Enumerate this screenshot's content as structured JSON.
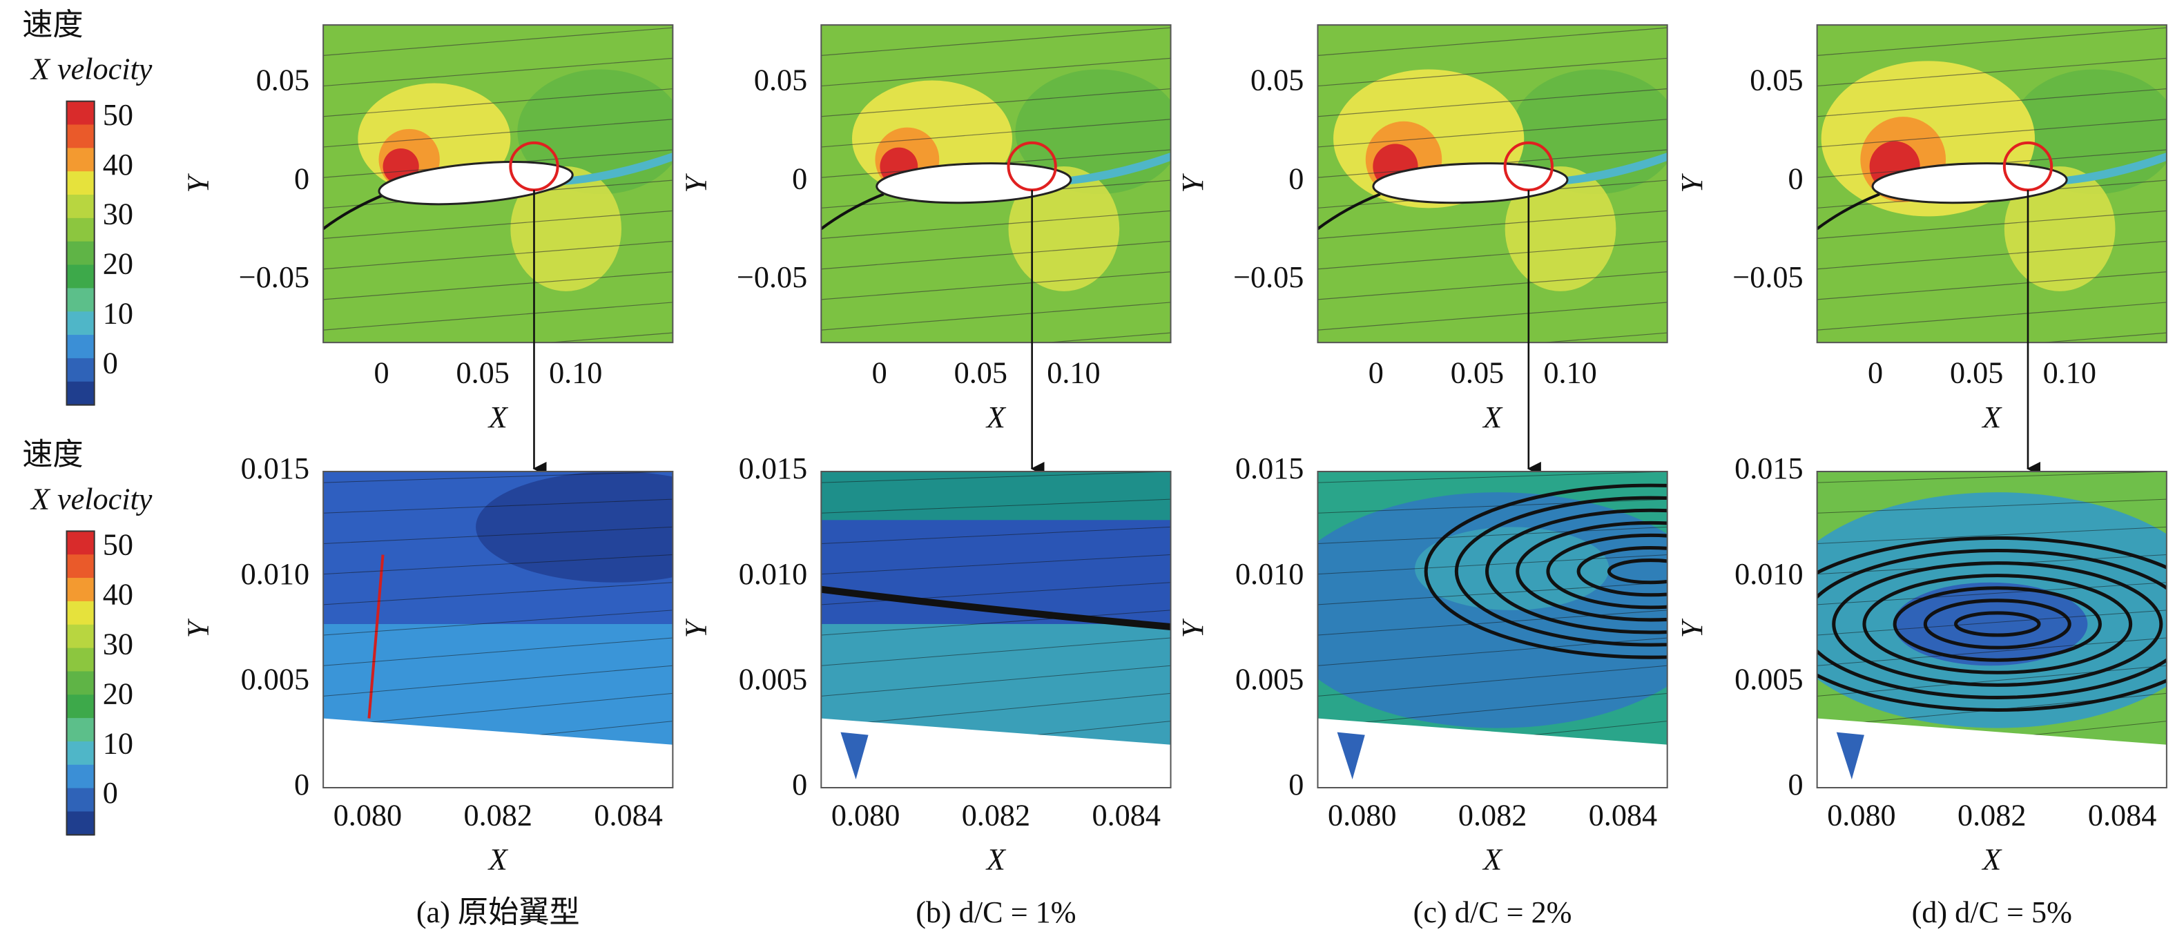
{
  "colorbars": [
    {
      "title_cn": "速度",
      "title_en": "X velocity",
      "labels": [
        "50",
        "40",
        "30",
        "20",
        "10",
        "0"
      ]
    },
    {
      "title_cn": "速度",
      "title_en": "X velocity",
      "labels": [
        "50",
        "40",
        "30",
        "20",
        "10",
        "0"
      ]
    }
  ],
  "panels": [
    {
      "caption": "(a) 原始翼型",
      "overview": {
        "x_label": "X",
        "y_label": "Y",
        "x_ticks": [
          "0",
          "0.05",
          "0.10"
        ],
        "y_ticks": [
          "0.05",
          "0",
          "−0.05"
        ]
      },
      "detail": {
        "x_label": "X",
        "y_label": "Y",
        "x_ticks": [
          "0.080",
          "0.082",
          "0.084"
        ],
        "y_ticks": [
          "0.015",
          "0.010",
          "0.005",
          "0"
        ]
      }
    },
    {
      "caption": "(b) d/C = 1%",
      "overview": {
        "x_label": "X",
        "y_label": "Y",
        "x_ticks": [
          "0",
          "0.05",
          "0.10"
        ],
        "y_ticks": [
          "0.05",
          "0",
          "−0.05"
        ]
      },
      "detail": {
        "x_label": "X",
        "y_label": "Y",
        "x_ticks": [
          "0.080",
          "0.082",
          "0.084"
        ],
        "y_ticks": [
          "0.015",
          "0.010",
          "0.005",
          "0"
        ]
      }
    },
    {
      "caption": "(c) d/C = 2%",
      "overview": {
        "x_label": "X",
        "y_label": "Y",
        "x_ticks": [
          "0",
          "0.05",
          "0.10"
        ],
        "y_ticks": [
          "0.05",
          "0",
          "−0.05"
        ]
      },
      "detail": {
        "x_label": "X",
        "y_label": "Y",
        "x_ticks": [
          "0.080",
          "0.082",
          "0.084"
        ],
        "y_ticks": [
          "0.015",
          "0.010",
          "0.005",
          "0"
        ]
      }
    },
    {
      "caption": "(d) d/C = 5%",
      "overview": {
        "x_label": "X",
        "y_label": "Y",
        "x_ticks": [
          "0",
          "0.05",
          "0.10"
        ],
        "y_ticks": [
          "0.05",
          "0",
          "−0.05"
        ]
      },
      "detail": {
        "x_label": "X",
        "y_label": "Y",
        "x_ticks": [
          "0.080",
          "0.082",
          "0.084"
        ],
        "y_ticks": [
          "0.015",
          "0.010",
          "0.005",
          "0"
        ]
      }
    }
  ]
}
